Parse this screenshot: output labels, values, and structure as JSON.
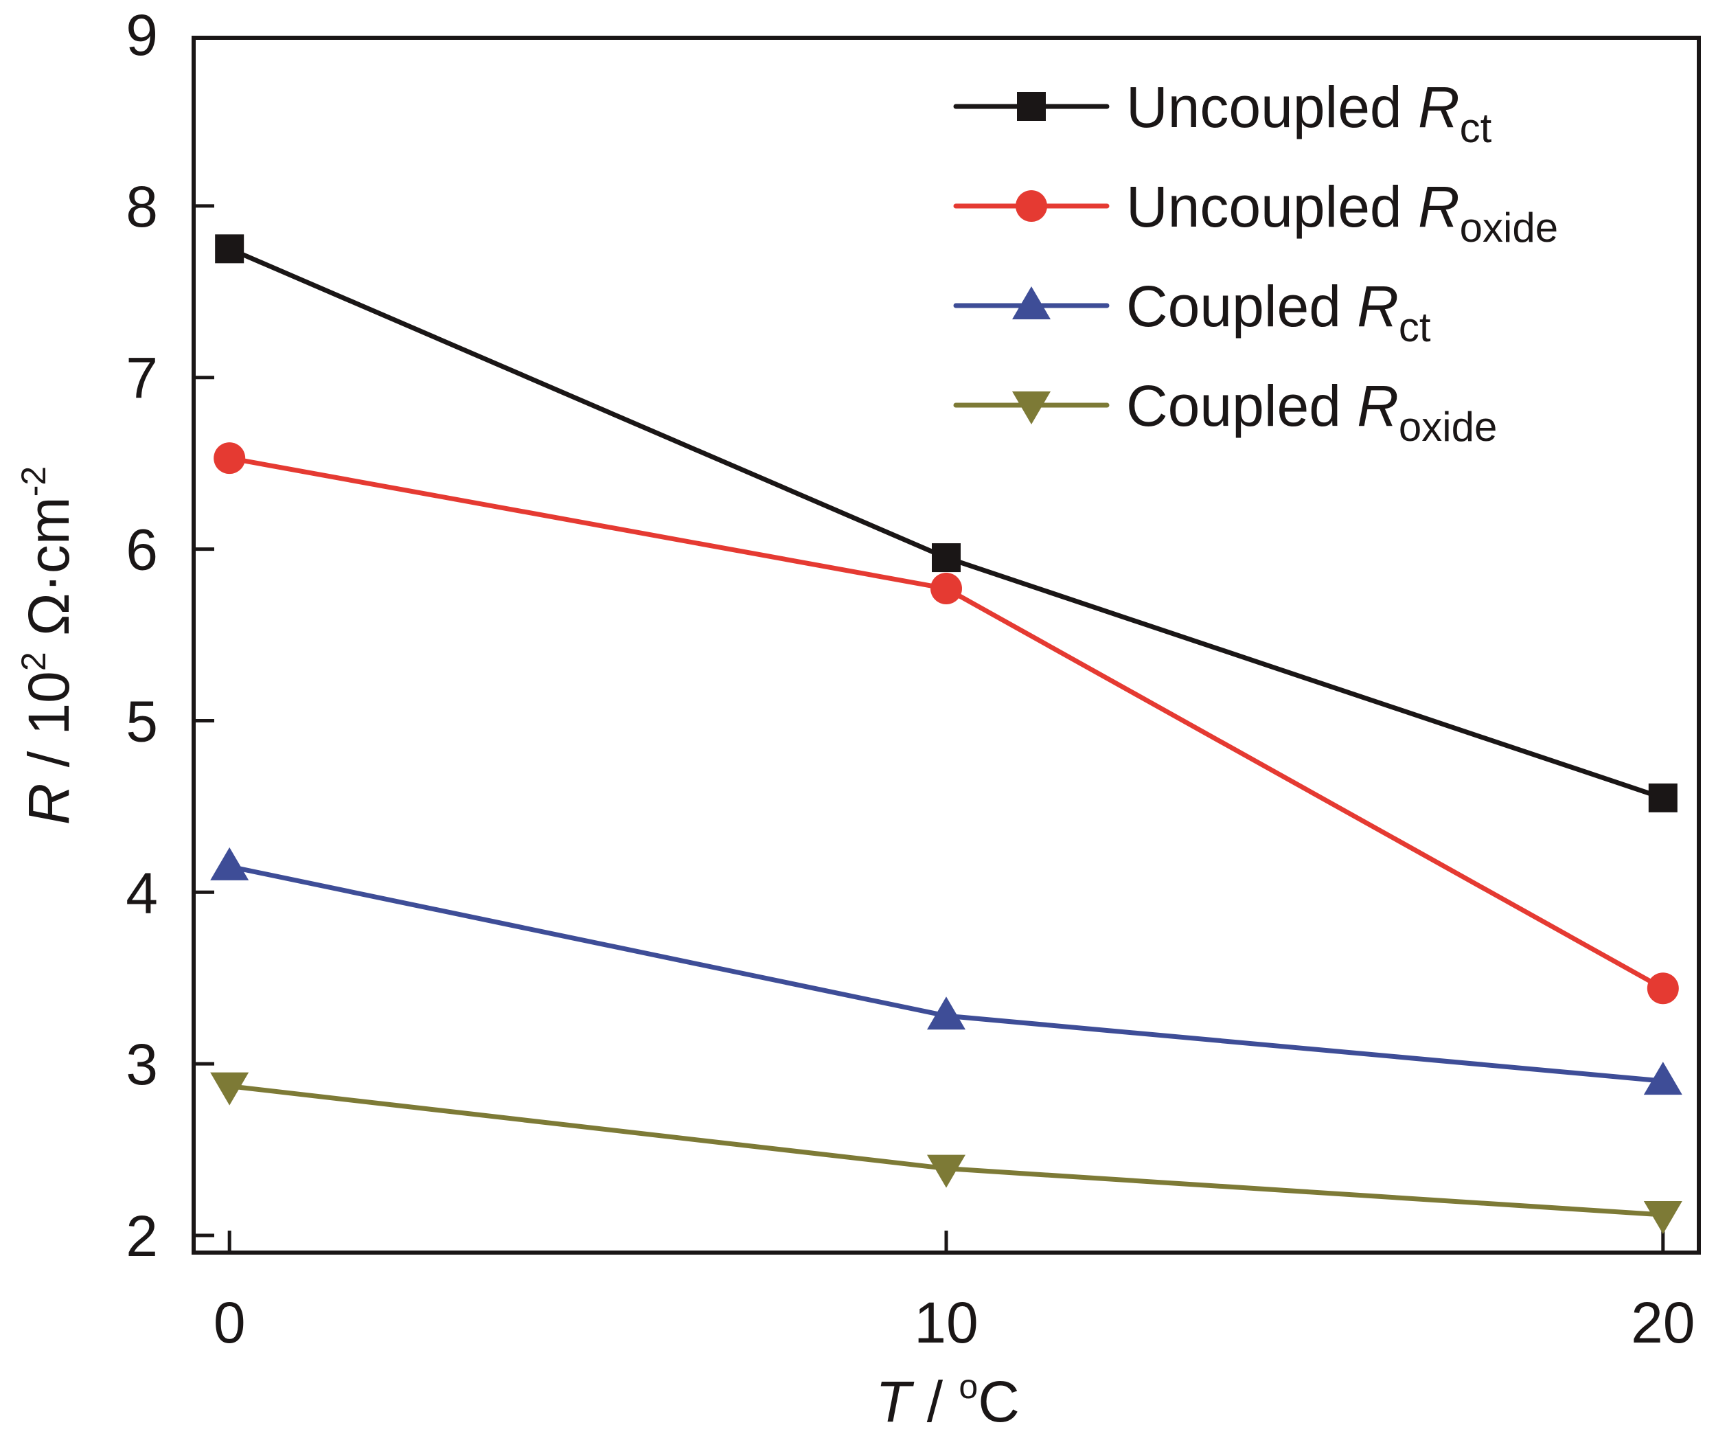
{
  "chart_data": {
    "type": "line",
    "title": "",
    "xlabel": {
      "italic": "T",
      "rest": " / ",
      "deg": "o",
      "unit": "C"
    },
    "ylabel": {
      "italic": "R",
      "rest": " / 10",
      "sup1": "2",
      "mid": " Ω·cm",
      "sup2": "-2"
    },
    "xlim": [
      -0.5,
      20.5
    ],
    "ylim": [
      1.9,
      8.98
    ],
    "x_ticks": [
      0,
      10,
      20
    ],
    "x_tick_labels": [
      "0",
      "10",
      "20"
    ],
    "y_ticks": [
      2,
      3,
      4,
      5,
      6,
      7,
      8,
      9
    ],
    "y_tick_labels": [
      "2",
      "3",
      "4",
      "5",
      "6",
      "7",
      "8",
      "9"
    ],
    "grid": false,
    "legend_position": "top-right",
    "x": [
      0,
      10,
      20
    ],
    "series": [
      {
        "name": "Uncoupled Rct",
        "label_main": "Uncoupled ",
        "label_R": "R",
        "label_sub": "ct",
        "color": "#1a1616",
        "marker": "square",
        "values": [
          7.75,
          5.95,
          4.55
        ]
      },
      {
        "name": "Uncoupled Roxide",
        "label_main": "Uncoupled ",
        "label_R": "R",
        "label_sub": "oxide",
        "color": "#e53a32",
        "marker": "circle",
        "values": [
          6.53,
          5.77,
          3.44
        ]
      },
      {
        "name": "Coupled Rct",
        "label_main": "Coupled ",
        "label_R": "R",
        "label_sub": "ct",
        "color": "#3e4d97",
        "marker": "triangle-up",
        "values": [
          4.15,
          3.28,
          2.9
        ]
      },
      {
        "name": "Coupled Roxide",
        "label_main": "Coupled ",
        "label_R": "R",
        "label_sub": "oxide",
        "color": "#7d7a36",
        "marker": "triangle-down",
        "values": [
          2.87,
          2.39,
          2.12
        ]
      }
    ]
  }
}
